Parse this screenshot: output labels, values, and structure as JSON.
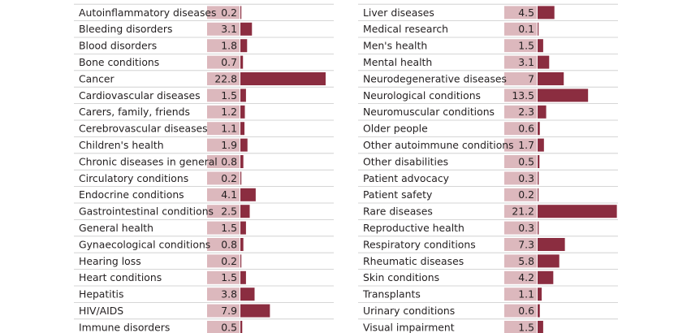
{
  "chart_data": {
    "type": "bar",
    "orientation": "horizontal",
    "layout": "two-column table with value boxes and bars",
    "bar_color": "#8b2d40",
    "value_box_color": "#dcb8bd",
    "rule_color": "#c9c9c9",
    "xlim": [
      0,
      22.8
    ],
    "panels": [
      {
        "categories": [
          "Autoinflammatory diseases",
          "Bleeding disorders",
          "Blood disorders",
          "Bone conditions",
          "Cancer",
          "Cardiovascular diseases",
          "Carers, family, friends",
          "Cerebrovascular diseases",
          "Children's health",
          "Chronic diseases in general",
          "Circulatory conditions",
          "Endocrine conditions",
          "Gastrointestinal conditions",
          "General health",
          "Gynaecological conditions",
          "Hearing loss",
          "Heart conditions",
          "Hepatitis",
          "HIV/AIDS",
          "Immune disorders"
        ],
        "values": [
          0.2,
          3.1,
          1.8,
          0.7,
          22.8,
          1.5,
          1.2,
          1.1,
          1.9,
          0.8,
          0.2,
          4.1,
          2.5,
          1.5,
          0.8,
          0.2,
          1.5,
          3.8,
          7.9,
          0.5
        ]
      },
      {
        "categories": [
          "Liver diseases",
          "Medical research",
          "Men's health",
          "Mental health",
          "Neurodegenerative diseases",
          "Neurological conditions",
          "Neuromuscular conditions",
          "Older people",
          "Other autoimmune conditions",
          "Other disabilities",
          "Patient advocacy",
          "Patient safety",
          "Rare diseases",
          "Reproductive health",
          "Respiratory conditions",
          "Rheumatic diseases",
          "Skin conditions",
          "Transplants",
          "Urinary conditions",
          "Visual impairment"
        ],
        "values": [
          4.5,
          0.1,
          1.5,
          3.1,
          7,
          13.5,
          2.3,
          0.6,
          1.7,
          0.5,
          0.3,
          0.2,
          21.2,
          0.3,
          7.3,
          5.8,
          4.2,
          1.1,
          0.6,
          1.5
        ]
      }
    ]
  }
}
